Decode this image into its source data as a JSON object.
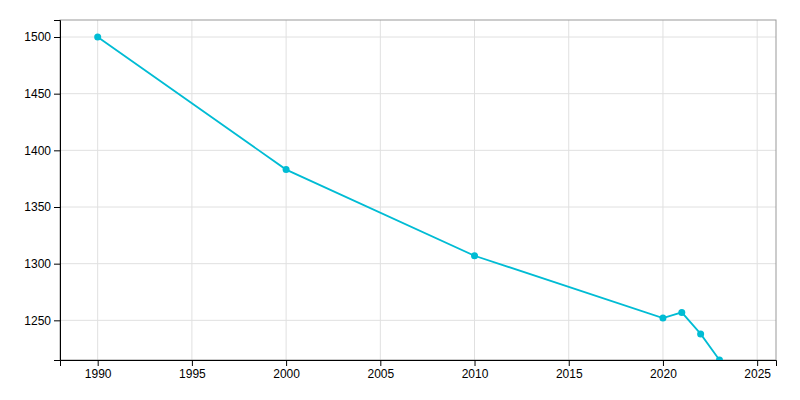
{
  "chart_data": {
    "type": "line",
    "x": [
      1990,
      2000,
      2010,
      2020,
      2021,
      2022,
      2023
    ],
    "values": [
      1500,
      1383,
      1307,
      1252,
      1257,
      1238,
      1215
    ],
    "color": "#00bcd4",
    "marker": "circle",
    "xlim": [
      1988,
      2026
    ],
    "ylim": [
      1215,
      1515
    ],
    "xticks": [
      1990,
      1995,
      2000,
      2005,
      2010,
      2015,
      2020,
      2025
    ],
    "yticks": [
      1250,
      1300,
      1350,
      1400,
      1450,
      1500
    ],
    "grid": true
  }
}
